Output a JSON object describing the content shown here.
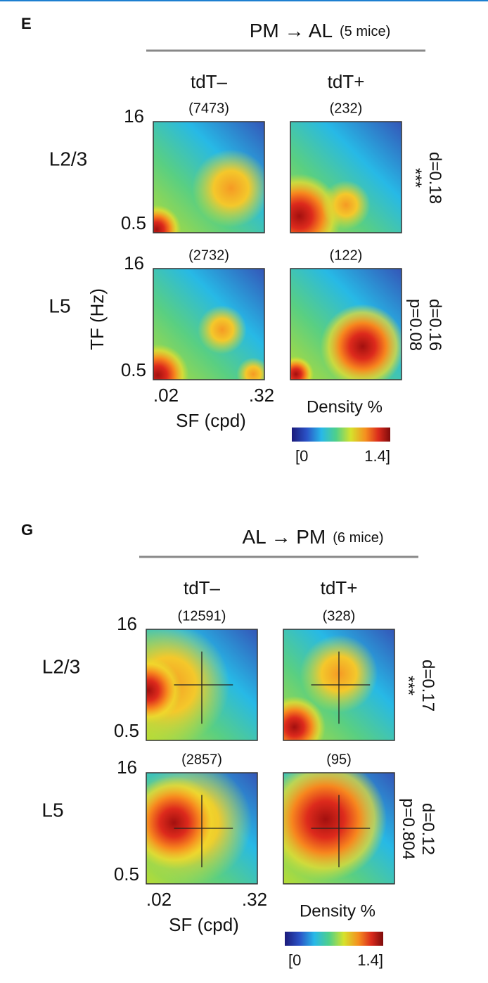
{
  "panels": [
    {
      "letter": "E",
      "title": "PM → AL",
      "mice": "(5 mice)",
      "columns": [
        "tdT–",
        "tdT+"
      ],
      "column_colors": [
        "#111111",
        "#e8262b"
      ],
      "rows": [
        {
          "layer": "L2/3",
          "counts": [
            "(7473)",
            "(232)"
          ],
          "y_ticks": [
            "16",
            "0.5"
          ],
          "stats": [
            "d=0.18",
            "***"
          ]
        },
        {
          "layer": "L5",
          "counts": [
            "(2732)",
            "(122)"
          ],
          "y_ticks": [
            "16",
            "0.5"
          ],
          "stats": [
            "d=0.16",
            "p=0.08"
          ]
        }
      ],
      "y_label": "TF (Hz)",
      "x_ticks": [
        ".02",
        ".32"
      ],
      "x_label": "SF (cpd)",
      "colorbar": {
        "label": "Density %",
        "min": "[0",
        "max": "1.4]"
      }
    },
    {
      "letter": "G",
      "title": "AL → PM",
      "mice": "(6 mice)",
      "columns": [
        "tdT–",
        "tdT+"
      ],
      "column_colors": [
        "#111111",
        "#e8262b"
      ],
      "rows": [
        {
          "layer": "L2/3",
          "counts": [
            "(12591)",
            "(328)"
          ],
          "y_ticks": [
            "16",
            "0.5"
          ],
          "stats": [
            "d=0.17",
            "***"
          ]
        },
        {
          "layer": "L5",
          "counts": [
            "(2857)",
            "(95)"
          ],
          "y_ticks": [
            "16",
            "0.5"
          ],
          "stats": [
            "d=0.12",
            "p=0.804"
          ]
        }
      ],
      "x_ticks": [
        ".02",
        ".32"
      ],
      "x_label": "SF (cpd)",
      "colorbar": {
        "label": "Density %",
        "min": "[0",
        "max": "1.4]"
      }
    }
  ]
}
